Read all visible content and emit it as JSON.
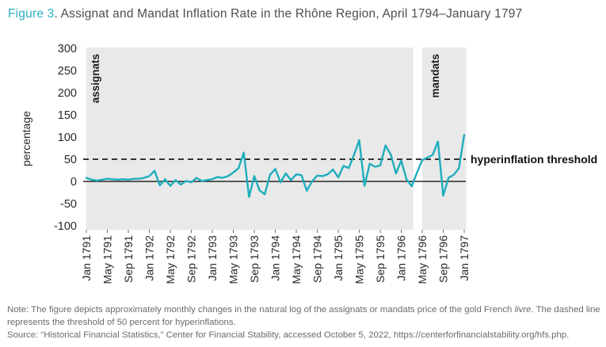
{
  "title": {
    "figure_label": "Figure 3",
    "text": ". Assignat and Mandat Inflation Rate in the Rhône Region, April 1794–January 1797"
  },
  "colors": {
    "accent_teal": "#1fadbc",
    "figure_label_teal": "#2db0c5",
    "region_fill": "#e9e9ea",
    "axis_text": "#28282a",
    "reference_black": "#1a1a1a",
    "note_gray": "#6a6b6e"
  },
  "chart_data": {
    "type": "line",
    "title": "Assignat and Mandat Inflation Rate in the Rhône Region",
    "ylabel": "percentage",
    "ylim": [
      -100,
      300
    ],
    "yticks": [
      300,
      250,
      200,
      150,
      100,
      50,
      0,
      -50,
      -100
    ],
    "xticklabels": [
      "Jan 1791",
      "May 1791",
      "Sep 1791",
      "Jan 1792",
      "May 1792",
      "Sep 1792",
      "Jan 1793",
      "May 1793",
      "Sep 1793",
      "Jan 1794",
      "May 1794",
      "Sep 1794",
      "Jan 1795",
      "May 1795",
      "Sep 1795",
      "Jan 1796",
      "May 1796",
      "Sep 1796",
      "Jan 1797"
    ],
    "months_per_tick": 4,
    "x_start_label": "Jan 1791",
    "x_end_label": "Jan 1797",
    "grid": false,
    "zero_line": true,
    "threshold": {
      "value": 50,
      "label": "hyperinflation threshold",
      "style": "dashed"
    },
    "regions": [
      {
        "label": "assignats",
        "start_month": 0,
        "end_month": 62.3
      },
      {
        "label": "mandats",
        "start_month": 64.0,
        "end_month": 72.4
      }
    ],
    "series": [
      {
        "name": "monthly inflation rate",
        "unit": "percent",
        "values": [
          8,
          4,
          2,
          4,
          6,
          5,
          4,
          5,
          4,
          6,
          6,
          8,
          12,
          24,
          -9,
          5,
          -10,
          3,
          -7,
          1,
          -2,
          8,
          1,
          3,
          5,
          10,
          8,
          12,
          20,
          30,
          65,
          -35,
          12,
          -20,
          -29,
          15,
          28,
          -2,
          18,
          3,
          16,
          14,
          -21,
          0,
          13,
          12,
          16,
          27,
          9,
          35,
          30,
          60,
          93,
          -10,
          40,
          33,
          36,
          81,
          61,
          18,
          47,
          5,
          -11,
          20,
          48,
          54,
          60,
          90,
          -32,
          8,
          15,
          30,
          105
        ]
      }
    ]
  },
  "note": {
    "prefix": "Note: The figure depicts approximately monthly changes in the natural log of the assignats or mandats price of the gold French ",
    "italic": "livre",
    "suffix": ". The dashed line represents the threshold of 50 percent for hyperinflations."
  },
  "source": "Source: “Historical Financial Statistics,” Center for Financial Stability, accessed October 5, 2022, https://centerforfinancialstability.org/hfs.php."
}
